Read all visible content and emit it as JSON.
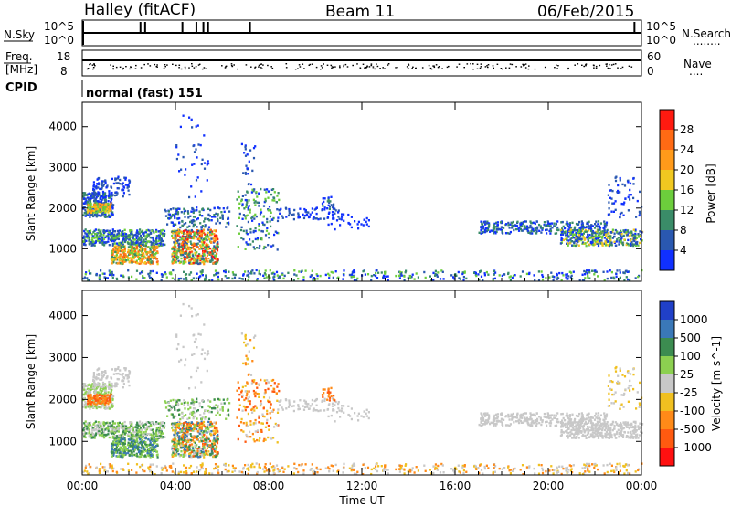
{
  "header": {
    "station": "Halley (fitACF)",
    "beam": "Beam 11",
    "date": "06/Feb/2015"
  },
  "top_panels": {
    "nsky_label": "N.Sky",
    "nsearch_label": "N.Search",
    "nsearch_dots": "........",
    "nsky_ticks": [
      "10^5",
      "10^0"
    ],
    "nsearch_ticks": [
      "10^5",
      "10^0"
    ],
    "freq_label_line1": "Freq.",
    "freq_label_line2": "[MHz]",
    "freq_ticks": [
      "18",
      "8"
    ],
    "nave_label": "Nave",
    "nave_dots": "....",
    "nave_ticks": [
      "60",
      "0"
    ],
    "cpid_label": "CPID",
    "cpid_text": "normal (fast) 151"
  },
  "chart_data": [
    {
      "type": "heatmap",
      "name": "power",
      "ylabel": "Slant Range [km]",
      "ylim": [
        200,
        4600
      ],
      "yticks": [
        "1000",
        "2000",
        "3000",
        "4000"
      ],
      "colorbar_label": "Power [dB]",
      "colorbar_ticks": [
        "4",
        "8",
        "12",
        "16",
        "20",
        "24",
        "28"
      ],
      "colorbar_colors": [
        "#1030ff",
        "#2a58b0",
        "#3a8c68",
        "#6ccd3c",
        "#f0c820",
        "#ff9a1a",
        "#ff6a14",
        "#ff1a10"
      ],
      "xticks": [
        "00:00",
        "04:00",
        "08:00",
        "12:00",
        "16:00",
        "20:00",
        "00:00"
      ],
      "xlim_hours": [
        0,
        24
      ]
    },
    {
      "type": "heatmap",
      "name": "velocity",
      "ylabel": "Slant Range [km]",
      "ylim": [
        200,
        4600
      ],
      "yticks": [
        "1000",
        "2000",
        "3000",
        "4000"
      ],
      "colorbar_label": "Velocity [m s^-1]",
      "colorbar_ticks": [
        "1000",
        "500",
        "100",
        "25",
        "-25",
        "-100",
        "-500",
        "-1000"
      ],
      "colorbar_colors": [
        "#2040c8",
        "#3a78b8",
        "#3c8c50",
        "#8cd050",
        "#c8c8c8",
        "#f0c020",
        "#ff8a18",
        "#ff5a10",
        "#ff1010"
      ],
      "xticks": [
        "00:00",
        "04:00",
        "08:00",
        "12:00",
        "16:00",
        "20:00",
        "00:00"
      ],
      "xlabel": "Time UT",
      "xlim_hours": [
        0,
        24
      ]
    }
  ]
}
